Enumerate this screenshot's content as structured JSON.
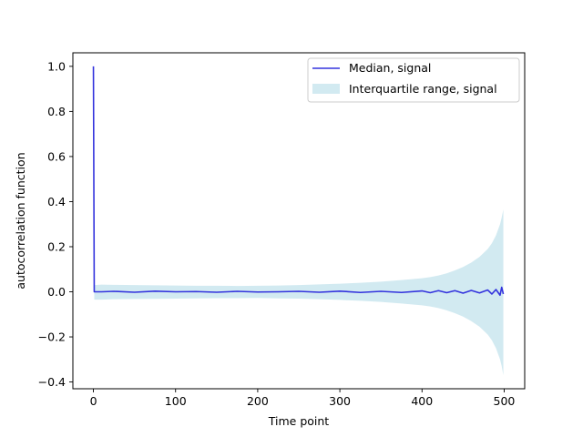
{
  "chart_data": {
    "type": "line",
    "title": "",
    "xlabel": "Time point",
    "ylabel": "autocorrelation function",
    "xlim": [
      -25,
      525
    ],
    "ylim": [
      -0.43,
      1.06
    ],
    "xticks": [
      0,
      100,
      200,
      300,
      400,
      500
    ],
    "yticks": [
      -0.4,
      -0.2,
      0.0,
      0.2,
      0.4,
      0.6,
      0.8,
      1.0
    ],
    "xtick_labels": [
      "0",
      "100",
      "200",
      "300",
      "400",
      "500"
    ],
    "ytick_labels": [
      "−0.4",
      "−0.2",
      "0.0",
      "0.2",
      "0.4",
      "0.6",
      "0.8",
      "1.0"
    ],
    "grid": false,
    "legend_position": "top-right",
    "series": [
      {
        "name": "Median, signal",
        "kind": "line",
        "color": "#3333dd",
        "x": [
          0,
          1,
          10,
          25,
          50,
          75,
          100,
          125,
          150,
          175,
          200,
          225,
          250,
          275,
          300,
          325,
          350,
          375,
          400,
          410,
          420,
          430,
          440,
          450,
          460,
          470,
          480,
          485,
          490,
          495,
          497,
          499
        ],
        "y": [
          1.0,
          0.0,
          0.0,
          0.002,
          -0.002,
          0.003,
          0.0,
          0.001,
          -0.002,
          0.002,
          -0.001,
          0.0,
          0.002,
          -0.002,
          0.003,
          -0.003,
          0.002,
          -0.003,
          0.004,
          -0.004,
          0.005,
          -0.004,
          0.005,
          -0.006,
          0.006,
          -0.005,
          0.008,
          -0.01,
          0.01,
          -0.015,
          0.02,
          -0.01
        ]
      },
      {
        "name": "Interquartile range, signal",
        "kind": "band",
        "color": "#add8e6",
        "x": [
          1,
          10,
          25,
          50,
          75,
          100,
          125,
          150,
          175,
          200,
          225,
          250,
          275,
          300,
          325,
          350,
          375,
          400,
          410,
          420,
          430,
          440,
          450,
          460,
          470,
          480,
          485,
          490,
          495,
          497,
          499
        ],
        "low": [
          -0.035,
          -0.035,
          -0.033,
          -0.032,
          -0.031,
          -0.03,
          -0.029,
          -0.028,
          -0.028,
          -0.027,
          -0.029,
          -0.03,
          -0.033,
          -0.036,
          -0.04,
          -0.045,
          -0.052,
          -0.06,
          -0.065,
          -0.072,
          -0.082,
          -0.095,
          -0.11,
          -0.13,
          -0.155,
          -0.19,
          -0.215,
          -0.25,
          -0.3,
          -0.33,
          -0.37
        ],
        "high": [
          0.03,
          0.032,
          0.031,
          0.03,
          0.029,
          0.028,
          0.027,
          0.027,
          0.026,
          0.027,
          0.028,
          0.03,
          0.033,
          0.036,
          0.04,
          0.045,
          0.052,
          0.06,
          0.065,
          0.072,
          0.082,
          0.095,
          0.11,
          0.13,
          0.155,
          0.19,
          0.215,
          0.25,
          0.3,
          0.33,
          0.365
        ]
      }
    ]
  }
}
